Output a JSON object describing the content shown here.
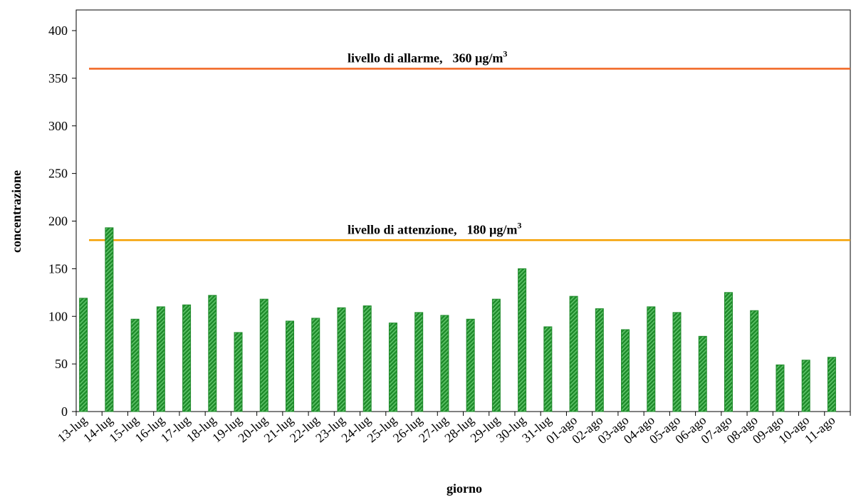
{
  "chart_data": {
    "type": "bar",
    "xlabel": "giorno",
    "ylabel": "concentrazione",
    "ylim": [
      0,
      400
    ],
    "yticks": [
      0,
      50,
      100,
      150,
      200,
      250,
      300,
      350,
      400
    ],
    "grid": false,
    "bar_color": "#1e8a2a",
    "bar_highlight": "#5fc46a",
    "categories": [
      "13-lug",
      "14-lug",
      "15-lug",
      "16-lug",
      "17-lug",
      "18-lug",
      "19-lug",
      "20-lug",
      "21-lug",
      "22-lug",
      "23-lug",
      "24-lug",
      "25-lug",
      "26-lug",
      "27-lug",
      "28-lug",
      "29-lug",
      "30-lug",
      "31-lug",
      "01-ago",
      "02-ago",
      "03-ago",
      "04-ago",
      "05-ago",
      "06-ago",
      "07-ago",
      "08-ago",
      "09-ago",
      "10-ago",
      "11-ago"
    ],
    "values": [
      119,
      193,
      97,
      110,
      112,
      122,
      83,
      118,
      95,
      98,
      109,
      111,
      93,
      104,
      101,
      97,
      118,
      150,
      89,
      121,
      108,
      86,
      110,
      104,
      79,
      125,
      106,
      49,
      54,
      57
    ],
    "reference_lines": [
      {
        "label": "livello di allarme,",
        "value_text": "360 µg/m",
        "superscript": "3",
        "value": 360,
        "color": "#f0641e"
      },
      {
        "label": "livello di attenzione,",
        "value_text": "180 µg/m",
        "superscript": "3",
        "value": 180,
        "color": "#f5a000"
      }
    ]
  }
}
